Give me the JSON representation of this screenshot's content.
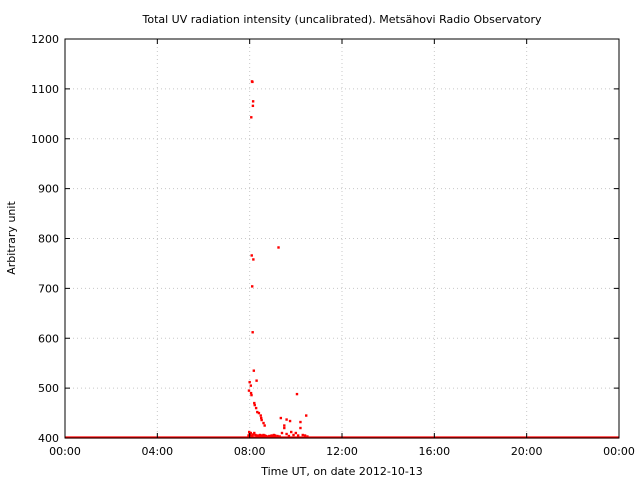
{
  "chart_data": {
    "type": "scatter",
    "title": "Total UV radiation intensity (uncalibrated). Metsähovi Radio Observatory",
    "xlabel": "Time UT, on date 2012-10-13",
    "ylabel": "Arbitrary unit",
    "xlim": [
      0,
      24
    ],
    "ylim": [
      400,
      1200
    ],
    "x_ticks": [
      0,
      4,
      8,
      12,
      16,
      20,
      24
    ],
    "x_tick_labels": [
      "00:00",
      "04:00",
      "08:00",
      "12:00",
      "16:00",
      "20:00",
      "00:00"
    ],
    "y_ticks": [
      400,
      500,
      600,
      700,
      800,
      900,
      1000,
      1100,
      1200
    ],
    "y_tick_labels": [
      "400",
      "500",
      "600",
      "700",
      "800",
      "900",
      "1000",
      "1100",
      "1200"
    ],
    "grid": true,
    "marker_color": "#ff0000",
    "baseline": {
      "value": 401,
      "x_range": [
        0,
        24
      ]
    },
    "series": [
      {
        "x": [
          7.95,
          8.0,
          8.05,
          7.98,
          8.02,
          8.08,
          8.1,
          8.12,
          8.15,
          8.2,
          8.25,
          8.3,
          8.35,
          8.4,
          8.45,
          8.5,
          8.55,
          8.6,
          8.65,
          8.7,
          8.75,
          8.8,
          8.85,
          8.9,
          8.95,
          9.0,
          9.05,
          9.1,
          9.2,
          9.3,
          9.4,
          9.5,
          9.6,
          9.7,
          9.8,
          9.9,
          10.0,
          10.1,
          10.2,
          10.3,
          10.4,
          10.5,
          8.1,
          8.12,
          8.15,
          8.14,
          8.07,
          8.09,
          8.11,
          8.13,
          8.16,
          8.18,
          8.3,
          8.05,
          8.0,
          7.97,
          8.06,
          8.08,
          8.2,
          8.22,
          8.28,
          8.33,
          8.4,
          8.48,
          8.5,
          8.52,
          8.6,
          8.65,
          9.25,
          9.35,
          9.5,
          9.6,
          9.75,
          10.05,
          10.2,
          10.45
        ],
        "y": [
          405,
          408,
          410,
          412,
          406,
          404,
          405,
          403,
          407,
          410,
          406,
          404,
          405,
          403,
          406,
          405,
          404,
          406,
          405,
          404,
          403,
          402,
          404,
          403,
          405,
          404,
          406,
          405,
          404,
          403,
          410,
          420,
          408,
          404,
          412,
          406,
          410,
          405,
          420,
          406,
          405,
          403,
          1115,
          1114,
          1075,
          1066,
          1043,
          766,
          704,
          612,
          758,
          535,
          515,
          505,
          512,
          495,
          490,
          486,
          470,
          466,
          460,
          452,
          450,
          445,
          440,
          436,
          430,
          425,
          782,
          440,
          425,
          437,
          434,
          488,
          432,
          445
        ]
      }
    ]
  }
}
